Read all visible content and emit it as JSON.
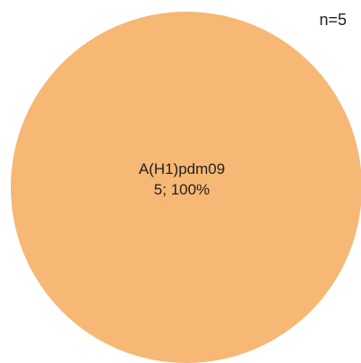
{
  "chart_data": {
    "type": "pie",
    "title": "",
    "annotation": "n=5",
    "slices": [
      {
        "label": "A(H1)pdm09",
        "value": 5,
        "percent": 100,
        "value_text": "5; 100%",
        "color": "#f6b874"
      }
    ],
    "legend": "none"
  }
}
